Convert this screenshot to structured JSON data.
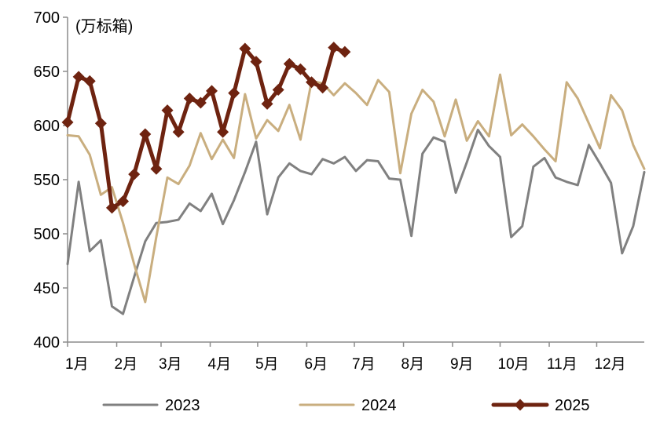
{
  "chart_data": {
    "type": "line",
    "ylabel": "(万标箱)",
    "ylim": [
      400,
      700
    ],
    "yticks": [
      400,
      450,
      500,
      550,
      600,
      650,
      700
    ],
    "x_unit": "week",
    "x_range": [
      0,
      52
    ],
    "months": [
      "1月",
      "2月",
      "3月",
      "4月",
      "5月",
      "6月",
      "7月",
      "8月",
      "9月",
      "10月",
      "11月",
      "12月"
    ],
    "month_start_weeks": [
      0,
      4.43,
      8.43,
      12.86,
      17.14,
      21.57,
      25.86,
      30.29,
      34.71,
      39.0,
      43.43,
      47.71
    ],
    "grid": false,
    "legend_position": "bottom",
    "series": [
      {
        "name": "2023",
        "color": "#808080",
        "marker": "none",
        "values": [
          472,
          548,
          484,
          494,
          433,
          426,
          460,
          493,
          510,
          511,
          513,
          528,
          521,
          537,
          509,
          531,
          557,
          585,
          518,
          552,
          565,
          558,
          555,
          569,
          565,
          571,
          558,
          568,
          567,
          551,
          550,
          498,
          574,
          589,
          585,
          538,
          566,
          596,
          581,
          571,
          497,
          507,
          562,
          570,
          552,
          548,
          545,
          582,
          565,
          547,
          482,
          507,
          557
        ]
      },
      {
        "name": "2024",
        "color": "#C9AE7F",
        "marker": "none",
        "values": [
          591,
          590,
          573,
          536,
          543,
          510,
          472,
          437,
          497,
          552,
          546,
          563,
          593,
          569,
          587,
          570,
          629,
          588,
          605,
          595,
          619,
          587,
          641,
          639,
          628,
          639,
          630,
          619,
          642,
          631,
          556,
          611,
          633,
          622,
          590,
          624,
          586,
          604,
          590,
          647,
          591,
          601,
          590,
          578,
          567,
          640,
          625,
          602,
          579,
          628,
          614,
          582,
          560
        ]
      },
      {
        "name": "2025",
        "color": "#6E2310",
        "marker": "diamond",
        "values": [
          603,
          645,
          641,
          602,
          524,
          530,
          555,
          592,
          560,
          614,
          594,
          625,
          621,
          632,
          594,
          630,
          671,
          659,
          620,
          633,
          657,
          652,
          640,
          635,
          672,
          668
        ]
      }
    ]
  }
}
